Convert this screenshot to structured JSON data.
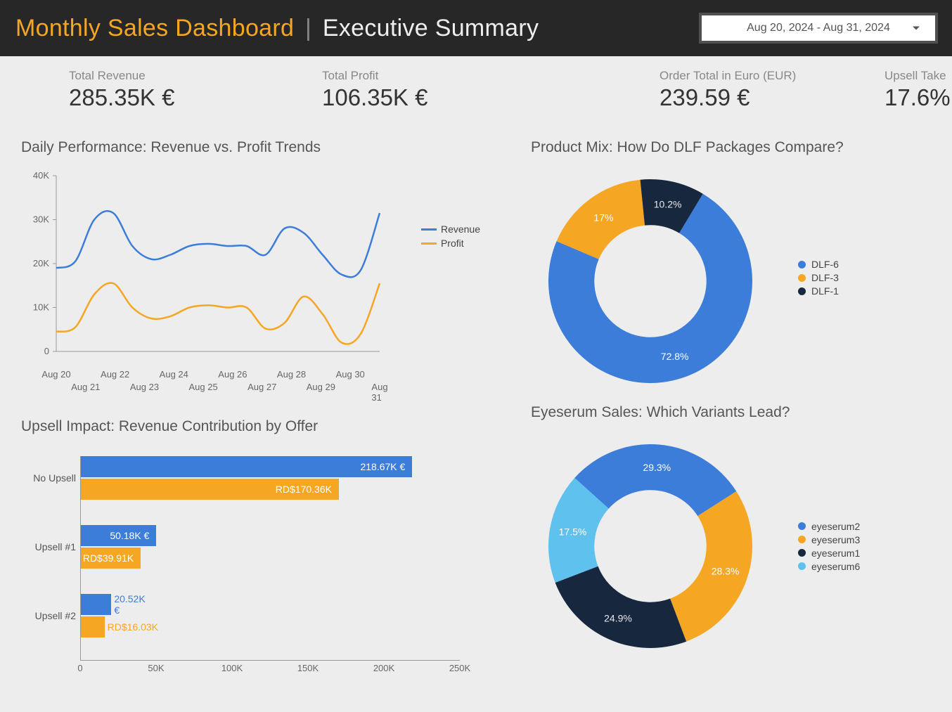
{
  "header": {
    "title_part1": "Monthly Sales Dashboard",
    "title_part2": "Executive Summary",
    "date_range": "Aug 20, 2024 - Aug 31, 2024"
  },
  "colors": {
    "accent_orange": "#f5a623",
    "blue": "#3b7dd8",
    "orange": "#f5a623",
    "navy": "#17273d",
    "lightblue": "#5ec1ee",
    "axis": "#999",
    "text": "#555"
  },
  "kpis": [
    {
      "label": "Total Revenue",
      "value": "285.35K €"
    },
    {
      "label": "Total Profit",
      "value": "106.35K €"
    },
    {
      "label": "",
      "value": ""
    },
    {
      "label": "Order Total in Euro (EUR)",
      "value": "239.59 €"
    },
    {
      "label": "Upsell Take",
      "value": "17.6%"
    }
  ],
  "line_chart": {
    "title": "Daily Performance: Revenue vs. Profit Trends",
    "x_labels_top": [
      "Aug 20",
      "Aug 22",
      "Aug 24",
      "Aug 26",
      "Aug 28",
      "Aug 30"
    ],
    "x_labels_bottom": [
      "Aug 21",
      "Aug 23",
      "Aug 25",
      "Aug 27",
      "Aug 29",
      "Aug 31"
    ],
    "y_ticks": [
      0,
      "10K",
      "20K",
      "30K",
      "40K"
    ],
    "y_max": 40000,
    "series": [
      {
        "name": "Revenue",
        "color": "#3b7dd8",
        "values": [
          19000,
          20500,
          30000,
          31500,
          24000,
          21000,
          22000,
          24000,
          24500,
          24000,
          24000,
          22000,
          28000,
          27000,
          22000,
          17500,
          18500,
          31500
        ]
      },
      {
        "name": "Profit",
        "color": "#f5a623",
        "values": [
          4500,
          5500,
          13000,
          15500,
          10000,
          7500,
          8000,
          10000,
          10500,
          10000,
          10000,
          5200,
          6500,
          12500,
          8500,
          2000,
          4000,
          15500
        ]
      }
    ],
    "legend": [
      {
        "label": "Revenue",
        "color": "#3b7dd8"
      },
      {
        "label": "Profit",
        "color": "#f5a623"
      }
    ]
  },
  "donut1": {
    "title": "Product Mix: How Do DLF Packages Compare?",
    "inner_ratio": 0.55,
    "slices": [
      {
        "label": "DLF-6",
        "pct": 72.8,
        "color": "#3b7dd8",
        "show_label": "72.8%"
      },
      {
        "label": "DLF-3",
        "pct": 17.0,
        "color": "#f5a623",
        "show_label": "17%"
      },
      {
        "label": "DLF-1",
        "pct": 10.2,
        "color": "#17273d",
        "show_label": "10.2%"
      }
    ],
    "start_angle": 31
  },
  "donut2": {
    "title": "Eyeserum Sales: Which Variants Lead?",
    "inner_ratio": 0.55,
    "slices": [
      {
        "label": "eyeserum2",
        "pct": 29.3,
        "color": "#3b7dd8",
        "show_label": "29.3%"
      },
      {
        "label": "eyeserum3",
        "pct": 28.3,
        "color": "#f5a623",
        "show_label": "28.3%"
      },
      {
        "label": "eyeserum1",
        "pct": 24.9,
        "color": "#17273d",
        "show_label": "24.9%"
      },
      {
        "label": "eyeserum6",
        "pct": 17.5,
        "color": "#5ec1ee",
        "show_label": "17.5%"
      }
    ],
    "start_angle": -48
  },
  "bar_chart": {
    "title": "Upsell Impact: Revenue Contribution by Offer",
    "x_max": 250000,
    "x_ticks": [
      0,
      "50K",
      "100K",
      "150K",
      "200K",
      "250K"
    ],
    "groups": [
      {
        "category": "No Upsell",
        "bars": [
          {
            "value": 218670,
            "label": "218.67K €",
            "color": "#3b7dd8",
            "label_color": "#fff",
            "outside": false
          },
          {
            "value": 170360,
            "label": "RD$170.36K",
            "color": "#f5a623",
            "label_color": "#fff",
            "outside": false
          }
        ]
      },
      {
        "category": "Upsell #1",
        "bars": [
          {
            "value": 50180,
            "label": "50.18K €",
            "color": "#3b7dd8",
            "label_color": "#fff",
            "outside": false
          },
          {
            "value": 39910,
            "label": "RD$39.91K",
            "color": "#f5a623",
            "label_color": "#fff",
            "outside": false
          }
        ]
      },
      {
        "category": "Upsell #2",
        "bars": [
          {
            "value": 20520,
            "label": "20.52K €",
            "color": "#3b7dd8",
            "label_color": "#3b7dd8",
            "outside": true
          },
          {
            "value": 16030,
            "label": "RD$16.03K",
            "color": "#f5a623",
            "label_color": "#f5a623",
            "outside": true
          }
        ]
      }
    ]
  }
}
